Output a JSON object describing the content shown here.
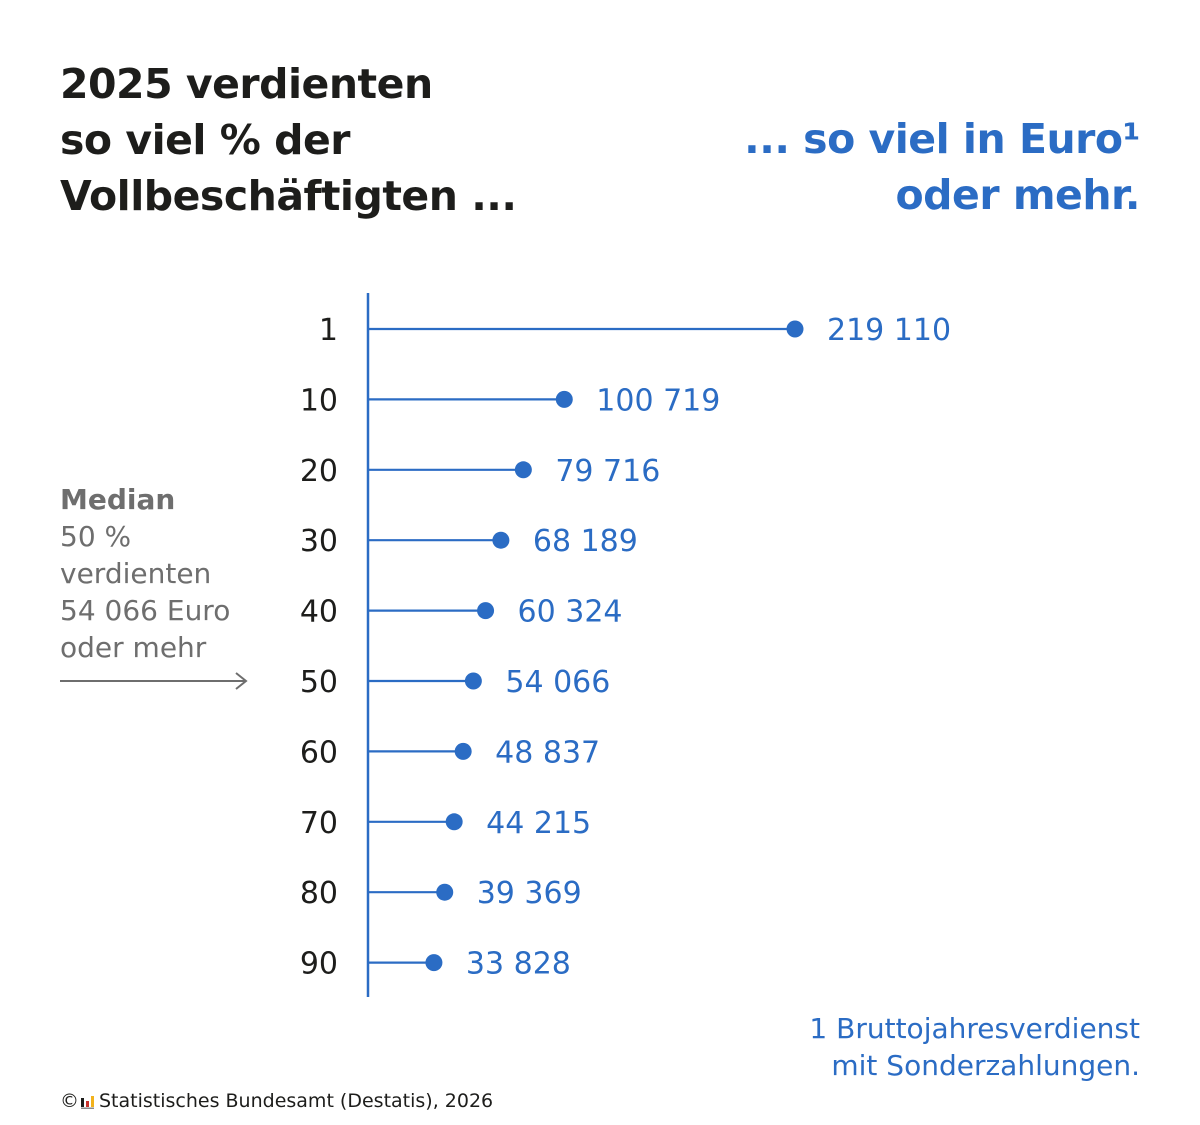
{
  "title_left": [
    "2025 verdienten",
    "so viel % der",
    "Vollbeschäftigten ..."
  ],
  "title_right": [
    "... so viel in Euro¹",
    "oder mehr."
  ],
  "median_note": {
    "heading": "Median",
    "lines": [
      "50 %",
      "verdienten",
      "54 066 Euro",
      "oder mehr"
    ]
  },
  "chart_data": {
    "type": "lollipop",
    "categories": [
      "1",
      "10",
      "20",
      "30",
      "40",
      "50",
      "60",
      "70",
      "80",
      "90"
    ],
    "values": [
      219110,
      100719,
      79716,
      68189,
      60324,
      54066,
      48837,
      44215,
      39369,
      33828
    ],
    "value_labels": [
      "219 110",
      "100 719",
      "79 716",
      "68 189",
      "60 324",
      "54 066",
      "48 837",
      "44 215",
      "39 369",
      "33 828"
    ],
    "xlim": [
      0,
      219110
    ],
    "grid": false,
    "legend": "none",
    "colors": {
      "series": "#2b6cc4",
      "category_labels": "#1d1d1b"
    }
  },
  "footnote": [
    "1 Bruttojahresverdienst",
    "mit Sonderzahlungen."
  ],
  "source": {
    "copyright_symbol": "©",
    "logo_icon": "destatis-logo-icon",
    "text": "Statistisches Bundesamt (Destatis), 2026"
  },
  "colors": {
    "accent": "#2b6cc4",
    "text": "#1d1d1b",
    "muted": "#6e6e6e"
  }
}
